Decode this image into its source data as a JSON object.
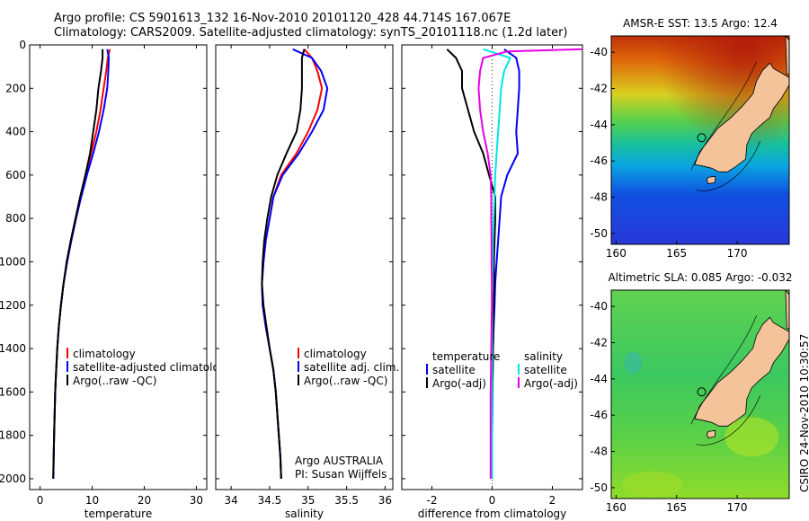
{
  "header": {
    "line1": "Argo profile: CS 5901613_132 16-Nov-2010 20101120_428 44.714S 167.067E",
    "line2": "Climatology: CARS2009. Satellite-adjusted climatology: synTS_20101118.nc (1.2d later)"
  },
  "side_text": "CSIRO 24-Nov-2010 10:30:57",
  "colors": {
    "climatology": "#ff0000",
    "satellite": "#0000ff",
    "argo": "#000000",
    "salinity_satellite": "#00e5e5",
    "salinity_argo": "#e600e6",
    "land": "#f4c39a"
  },
  "chart_data": [
    {
      "type": "line",
      "xlabel": "temperature",
      "ylim": [
        2050,
        0
      ],
      "xlim": [
        -2,
        32
      ],
      "yticks": [
        0,
        200,
        400,
        600,
        800,
        1000,
        1200,
        1400,
        1600,
        1800,
        2000
      ],
      "xticks": [
        0,
        10,
        20,
        30
      ],
      "series": [
        {
          "name": "climatology",
          "color": "#ff0000",
          "points": [
            [
              13.4,
              20
            ],
            [
              13.0,
              60
            ],
            [
              12.7,
              120
            ],
            [
              12.2,
              200
            ],
            [
              11.6,
              300
            ],
            [
              10.8,
              400
            ],
            [
              9.8,
              500
            ],
            [
              8.8,
              600
            ],
            [
              7.8,
              700
            ],
            [
              6.9,
              800
            ],
            [
              6.0,
              900
            ],
            [
              5.2,
              1000
            ],
            [
              4.5,
              1100
            ],
            [
              4.0,
              1200
            ],
            [
              3.6,
              1300
            ],
            [
              3.3,
              1400
            ],
            [
              3.1,
              1500
            ],
            [
              2.9,
              1600
            ],
            [
              2.8,
              1700
            ],
            [
              2.7,
              1800
            ],
            [
              2.6,
              1900
            ],
            [
              2.55,
              2000
            ]
          ]
        },
        {
          "name": "satellite-adjusted climatology",
          "color": "#0000ff",
          "points": [
            [
              12.9,
              20
            ],
            [
              13.2,
              60
            ],
            [
              13.1,
              120
            ],
            [
              12.9,
              200
            ],
            [
              12.2,
              300
            ],
            [
              11.3,
              400
            ],
            [
              10.2,
              500
            ],
            [
              9.0,
              600
            ],
            [
              7.9,
              700
            ],
            [
              6.9,
              800
            ],
            [
              6.0,
              900
            ],
            [
              5.2,
              1000
            ],
            [
              4.5,
              1100
            ],
            [
              4.0,
              1200
            ],
            [
              3.6,
              1300
            ],
            [
              3.3,
              1400
            ],
            [
              3.1,
              1500
            ],
            [
              2.9,
              1600
            ],
            [
              2.8,
              1700
            ],
            [
              2.7,
              1800
            ],
            [
              2.6,
              1900
            ],
            [
              2.55,
              2000
            ]
          ]
        },
        {
          "name": "Argo(..raw -QC)",
          "color": "#000000",
          "points": [
            [
              12.0,
              20
            ],
            [
              12.0,
              60
            ],
            [
              11.7,
              120
            ],
            [
              11.2,
              200
            ],
            [
              10.8,
              300
            ],
            [
              10.2,
              400
            ],
            [
              9.6,
              500
            ],
            [
              8.7,
              600
            ],
            [
              7.7,
              700
            ],
            [
              6.8,
              800
            ],
            [
              5.9,
              900
            ],
            [
              5.1,
              1000
            ],
            [
              4.5,
              1100
            ],
            [
              4.0,
              1200
            ],
            [
              3.6,
              1300
            ],
            [
              3.3,
              1400
            ],
            [
              3.1,
              1500
            ],
            [
              2.9,
              1600
            ],
            [
              2.8,
              1700
            ],
            [
              2.7,
              1800
            ],
            [
              2.6,
              1900
            ],
            [
              2.5,
              2000
            ]
          ]
        }
      ],
      "legend": [
        "climatology",
        "satellite-adjusted climatolo",
        "Argo(..raw -QC)"
      ]
    },
    {
      "type": "line",
      "xlabel": "salinity",
      "ylim": [
        2050,
        0
      ],
      "xlim": [
        33.8,
        36.1
      ],
      "xticks": [
        34,
        34.5,
        35,
        35.5,
        36
      ],
      "series": [
        {
          "name": "climatology",
          "color": "#ff0000",
          "points": [
            [
              34.95,
              20
            ],
            [
              35.05,
              60
            ],
            [
              35.12,
              120
            ],
            [
              35.18,
              200
            ],
            [
              35.12,
              300
            ],
            [
              35.0,
              400
            ],
            [
              34.85,
              500
            ],
            [
              34.65,
              600
            ],
            [
              34.55,
              700
            ],
            [
              34.5,
              800
            ],
            [
              34.45,
              900
            ],
            [
              34.42,
              1000
            ],
            [
              34.4,
              1100
            ],
            [
              34.41,
              1200
            ],
            [
              34.45,
              1300
            ],
            [
              34.5,
              1400
            ],
            [
              34.55,
              1500
            ],
            [
              34.58,
              1600
            ],
            [
              34.6,
              1700
            ],
            [
              34.62,
              1800
            ],
            [
              34.64,
              1900
            ],
            [
              34.65,
              2000
            ]
          ]
        },
        {
          "name": "satellite adj. clim.",
          "color": "#0000ff",
          "points": [
            [
              34.8,
              20
            ],
            [
              35.05,
              60
            ],
            [
              35.17,
              120
            ],
            [
              35.25,
              200
            ],
            [
              35.2,
              300
            ],
            [
              35.05,
              400
            ],
            [
              34.88,
              500
            ],
            [
              34.67,
              600
            ],
            [
              34.55,
              700
            ],
            [
              34.5,
              800
            ],
            [
              34.45,
              900
            ],
            [
              34.42,
              1000
            ],
            [
              34.4,
              1100
            ],
            [
              34.41,
              1200
            ],
            [
              34.45,
              1300
            ],
            [
              34.5,
              1400
            ],
            [
              34.55,
              1500
            ],
            [
              34.58,
              1600
            ],
            [
              34.6,
              1700
            ],
            [
              34.62,
              1800
            ],
            [
              34.64,
              1900
            ],
            [
              34.65,
              2000
            ]
          ]
        },
        {
          "name": "Argo(..raw -QC)",
          "color": "#000000",
          "points": [
            [
              34.95,
              20
            ],
            [
              34.92,
              60
            ],
            [
              34.92,
              120
            ],
            [
              34.92,
              200
            ],
            [
              34.9,
              300
            ],
            [
              34.85,
              400
            ],
            [
              34.72,
              500
            ],
            [
              34.6,
              600
            ],
            [
              34.52,
              700
            ],
            [
              34.47,
              800
            ],
            [
              34.43,
              900
            ],
            [
              34.41,
              1000
            ],
            [
              34.4,
              1100
            ],
            [
              34.42,
              1200
            ],
            [
              34.46,
              1300
            ],
            [
              34.5,
              1400
            ],
            [
              34.55,
              1500
            ],
            [
              34.58,
              1600
            ],
            [
              34.6,
              1700
            ],
            [
              34.62,
              1800
            ],
            [
              34.64,
              1900
            ],
            [
              34.65,
              2000
            ]
          ]
        }
      ],
      "legend": [
        "climatology",
        "satellite adj. clim.",
        "Argo(..raw -QC)"
      ],
      "annotation": [
        "Argo AUSTRALIA",
        "PI: Susan Wijffels"
      ]
    },
    {
      "type": "line",
      "xlabel": "difference from climatology",
      "ylim": [
        2050,
        0
      ],
      "xlim": [
        -3,
        3
      ],
      "xticks": [
        -2,
        0,
        2
      ],
      "series": [
        {
          "name": "temperature satellite",
          "color": "#0000ff",
          "points": [
            [
              0.4,
              20
            ],
            [
              0.8,
              60
            ],
            [
              0.9,
              120
            ],
            [
              0.9,
              200
            ],
            [
              0.85,
              300
            ],
            [
              0.8,
              400
            ],
            [
              0.85,
              500
            ],
            [
              0.5,
              600
            ],
            [
              0.3,
              700
            ],
            [
              0.25,
              800
            ],
            [
              0.2,
              900
            ],
            [
              0.15,
              1000
            ],
            [
              0.1,
              1100
            ],
            [
              0.08,
              1200
            ],
            [
              0.05,
              1300
            ],
            [
              0.03,
              1400
            ],
            [
              0.02,
              1500
            ],
            [
              0.01,
              1600
            ],
            [
              0.01,
              1700
            ],
            [
              0.0,
              1800
            ],
            [
              0.0,
              1900
            ],
            [
              0.0,
              2000
            ]
          ]
        },
        {
          "name": "temperature Argo(-adj)",
          "color": "#000000",
          "points": [
            [
              -1.5,
              20
            ],
            [
              -1.2,
              60
            ],
            [
              -1.0,
              120
            ],
            [
              -1.0,
              200
            ],
            [
              -0.8,
              300
            ],
            [
              -0.6,
              400
            ],
            [
              -0.3,
              500
            ],
            [
              -0.1,
              600
            ],
            [
              0.1,
              700
            ],
            [
              0.1,
              800
            ],
            [
              0.08,
              900
            ],
            [
              0.06,
              1000
            ],
            [
              0.07,
              1100
            ],
            [
              0.05,
              1200
            ],
            [
              0.04,
              1300
            ],
            [
              0.03,
              1400
            ],
            [
              0.02,
              1500
            ],
            [
              0.01,
              1600
            ],
            [
              0.0,
              1700
            ],
            [
              -0.01,
              1800
            ],
            [
              -0.02,
              1900
            ],
            [
              -0.03,
              2000
            ]
          ]
        },
        {
          "name": "salinity satellite",
          "color": "#00e5e5",
          "points": [
            [
              -0.3,
              20
            ],
            [
              0.6,
              60
            ],
            [
              0.4,
              120
            ],
            [
              0.3,
              200
            ],
            [
              0.25,
              300
            ],
            [
              0.2,
              400
            ],
            [
              0.15,
              500
            ],
            [
              0.1,
              600
            ],
            [
              0.08,
              700
            ],
            [
              0.05,
              800
            ],
            [
              0.03,
              900
            ],
            [
              0.02,
              1000
            ],
            [
              0.01,
              1100
            ],
            [
              0.0,
              1200
            ],
            [
              0.0,
              1400
            ],
            [
              0.0,
              1600
            ],
            [
              0.0,
              1800
            ],
            [
              0.0,
              2000
            ]
          ]
        },
        {
          "name": "salinity Argo(-adj)",
          "color": "#e600e6",
          "points": [
            [
              3.0,
              20
            ],
            [
              0.5,
              30
            ],
            [
              -0.3,
              60
            ],
            [
              -0.4,
              120
            ],
            [
              -0.45,
              200
            ],
            [
              -0.4,
              300
            ],
            [
              -0.3,
              400
            ],
            [
              -0.15,
              500
            ],
            [
              -0.05,
              600
            ],
            [
              -0.03,
              700
            ],
            [
              -0.03,
              800
            ],
            [
              -0.02,
              900
            ],
            [
              -0.02,
              1000
            ],
            [
              -0.01,
              1100
            ],
            [
              -0.01,
              1200
            ],
            [
              -0.02,
              1300
            ],
            [
              -0.03,
              1400
            ],
            [
              -0.04,
              1500
            ],
            [
              -0.05,
              1600
            ],
            [
              -0.05,
              1700
            ],
            [
              -0.05,
              1800
            ],
            [
              -0.05,
              1900
            ],
            [
              -0.05,
              2000
            ]
          ]
        }
      ],
      "legend_headers": [
        "temperature",
        "salinity"
      ],
      "legend": [
        "satellite",
        "Argo(-adj)",
        "satellite",
        "Argo(-adj)"
      ]
    },
    {
      "type": "heatmap",
      "title": "AMSR-E SST: 13.5 Argo: 12.4",
      "xticks": [
        160,
        165,
        170
      ],
      "yticks": [
        -40,
        -42,
        -44,
        -46,
        -48,
        -50
      ],
      "xlim": [
        159.6,
        174.3
      ],
      "ylim": [
        -50.6,
        -39.1
      ]
    },
    {
      "type": "heatmap",
      "title": "Altimetric SLA: 0.085 Argo: -0.032",
      "xticks": [
        160,
        165,
        170
      ],
      "yticks": [
        -40,
        -42,
        -44,
        -46,
        -48,
        -50
      ],
      "xlim": [
        159.6,
        174.3
      ],
      "ylim": [
        -50.6,
        -39.1
      ]
    }
  ]
}
